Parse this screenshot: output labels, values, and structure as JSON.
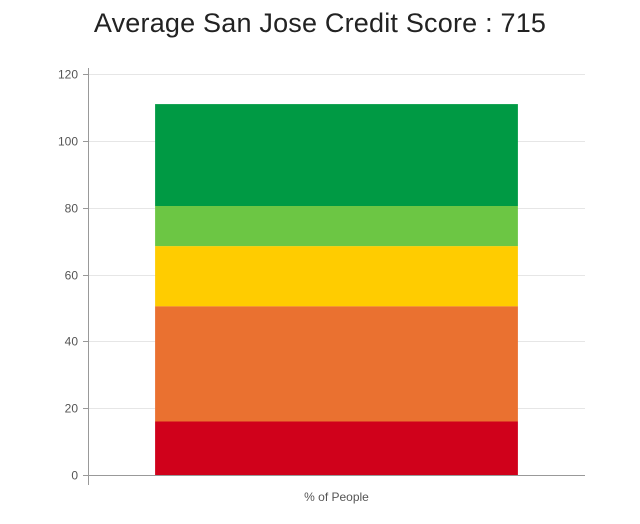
{
  "chart_data": {
    "type": "bar",
    "stacked": true,
    "title": "Average San Jose Credit Score : 715",
    "categories": [
      "% of People"
    ],
    "ylim": [
      0,
      120
    ],
    "yticks": [
      0,
      20,
      40,
      60,
      80,
      100,
      120
    ],
    "grid": true,
    "legend": "none",
    "series": [
      {
        "values": [
          16
        ],
        "color": "#d0011b"
      },
      {
        "values": [
          34.5
        ],
        "color": "#ea7130"
      },
      {
        "values": [
          18
        ],
        "color": "#ffcc00"
      },
      {
        "values": [
          12
        ],
        "color": "#6cc644"
      },
      {
        "values": [
          30.5
        ],
        "color": "#009a44"
      }
    ]
  }
}
